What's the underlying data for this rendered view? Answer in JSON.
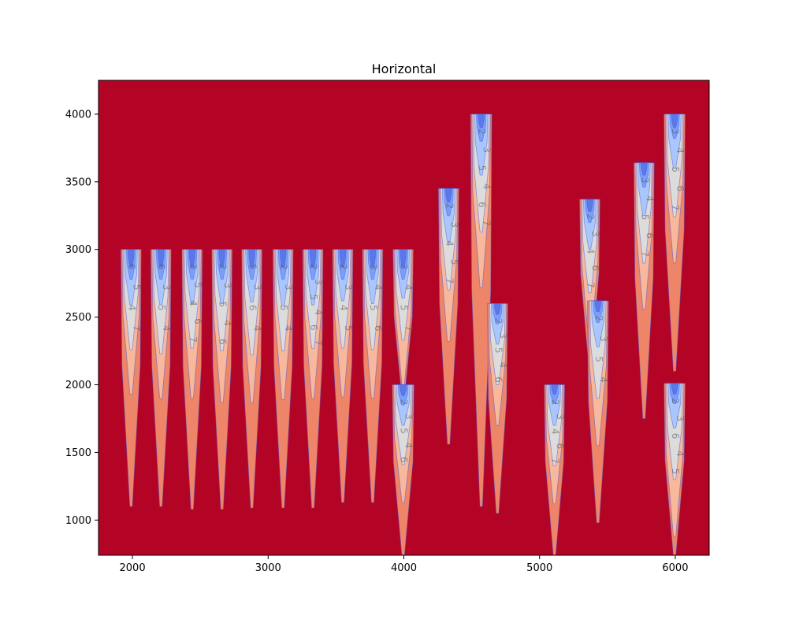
{
  "chart_data": {
    "type": "contourf",
    "title": "Horizontal",
    "xlabel": "",
    "ylabel": "",
    "xlim": [
      1750,
      6250
    ],
    "ylim": [
      740,
      4250
    ],
    "x_ticks": [
      2000,
      3000,
      4000,
      5000,
      6000
    ],
    "x_tick_labels": [
      "2000",
      "3000",
      "4000",
      "5000",
      "6000"
    ],
    "y_ticks": [
      1000,
      1500,
      2000,
      2500,
      3000,
      3500,
      4000
    ],
    "y_tick_labels": [
      "1000",
      "1500",
      "2000",
      "2500",
      "3000",
      "3500",
      "4000"
    ],
    "grid": false,
    "colormap": "coolwarm",
    "background_color": "#b40426",
    "contour_levels": [
      {
        "level": "1",
        "color": "#5a78e6"
      },
      {
        "level": "2",
        "color": "#7b9ff9"
      },
      {
        "level": "3",
        "color": "#aac7fd"
      },
      {
        "level": "4",
        "color": "#dddcdc"
      },
      {
        "level": "5",
        "color": "#f7b89c"
      },
      {
        "level": "6",
        "color": "#ee8468"
      },
      {
        "level": "7",
        "color": "#b40426"
      }
    ],
    "plumes": [
      {
        "x": 1990,
        "top": 3000,
        "halfwidth": 75,
        "bottoms": [
          2870,
          2780,
          2590,
          2260,
          1930,
          1100
        ],
        "labels": [
          "6",
          "5",
          "4",
          "7"
        ]
      },
      {
        "x": 2210,
        "top": 3000,
        "halfwidth": 75,
        "bottoms": [
          2870,
          2780,
          2590,
          2230,
          1900,
          1100
        ],
        "labels": [
          "6",
          "3",
          "5",
          "4"
        ]
      },
      {
        "x": 2440,
        "top": 3000,
        "halfwidth": 75,
        "bottoms": [
          2870,
          2780,
          2600,
          2270,
          1900,
          1080
        ],
        "labels": [
          "3",
          "5",
          "4",
          "6",
          "7"
        ]
      },
      {
        "x": 2660,
        "top": 3000,
        "halfwidth": 75,
        "bottoms": [
          2870,
          2780,
          2600,
          2250,
          1870,
          1080
        ],
        "labels": [
          "2",
          "3",
          "5",
          "4",
          "6"
        ]
      },
      {
        "x": 2880,
        "top": 3000,
        "halfwidth": 75,
        "bottoms": [
          2870,
          2780,
          2610,
          2220,
          1870,
          1090
        ],
        "labels": [
          "5",
          "3",
          "6",
          "4"
        ]
      },
      {
        "x": 3110,
        "top": 3000,
        "halfwidth": 75,
        "bottoms": [
          2870,
          2780,
          2580,
          2250,
          1890,
          1090
        ],
        "labels": [
          "2",
          "3",
          "5",
          "4"
        ]
      },
      {
        "x": 3330,
        "top": 3000,
        "halfwidth": 75,
        "bottoms": [
          2870,
          2780,
          2590,
          2270,
          1900,
          1090
        ],
        "labels": [
          "2",
          "3",
          "5",
          "4",
          "6",
          "7"
        ]
      },
      {
        "x": 3550,
        "top": 3000,
        "halfwidth": 75,
        "bottoms": [
          2870,
          2780,
          2620,
          2270,
          1910,
          1130
        ],
        "labels": [
          "2",
          "3",
          "4",
          "5"
        ]
      },
      {
        "x": 3770,
        "top": 3000,
        "halfwidth": 75,
        "bottoms": [
          2870,
          2780,
          2600,
          2260,
          1900,
          1130
        ],
        "labels": [
          "3",
          "4",
          "5",
          "6"
        ]
      },
      {
        "x": 3995,
        "top": 3000,
        "halfwidth": 75,
        "bottoms": [
          2870,
          2780,
          2640,
          2330,
          2000,
          1900
        ],
        "labels": [
          "3",
          "4",
          "5",
          "7"
        ]
      },
      {
        "x": 3995,
        "top": 2000,
        "halfwidth": 80,
        "bottoms": [
          1920,
          1850,
          1700,
          1410,
          1130,
          740
        ],
        "labels": [
          "2",
          "3",
          "5",
          "4",
          "6"
        ]
      },
      {
        "x": 4330,
        "top": 3450,
        "halfwidth": 75,
        "bottoms": [
          3350,
          3250,
          3050,
          2700,
          2320,
          1560
        ],
        "labels": [
          "2",
          "3",
          "4",
          "5",
          "7"
        ]
      },
      {
        "x": 4570,
        "top": 4000,
        "halfwidth": 78,
        "bottoms": [
          3900,
          3800,
          3550,
          3130,
          2720,
          1100
        ],
        "labels": [
          "2",
          "3",
          "5",
          "4",
          "6",
          "7"
        ]
      },
      {
        "x": 4690,
        "top": 2600,
        "halfwidth": 75,
        "bottoms": [
          2520,
          2450,
          2300,
          2000,
          1700,
          1050
        ],
        "labels": [
          "2",
          "3",
          "5",
          "4",
          "6"
        ]
      },
      {
        "x": 5110,
        "top": 2000,
        "halfwidth": 75,
        "bottoms": [
          1930,
          1860,
          1700,
          1400,
          1120,
          740
        ],
        "labels": [
          "2",
          "3",
          "4",
          "6",
          "7"
        ]
      },
      {
        "x": 5370,
        "top": 3370,
        "halfwidth": 75,
        "bottoms": [
          3280,
          3200,
          3010,
          2680,
          2330,
          2150
        ],
        "labels": [
          "2",
          "3",
          "4",
          "6",
          "7"
        ]
      },
      {
        "x": 5430,
        "top": 2620,
        "halfwidth": 78,
        "bottoms": [
          2540,
          2460,
          2280,
          1900,
          1550,
          980
        ],
        "labels": [
          "2",
          "3",
          "5",
          "4"
        ]
      },
      {
        "x": 5770,
        "top": 3640,
        "halfwidth": 75,
        "bottoms": [
          3550,
          3460,
          3250,
          2900,
          2560,
          1750
        ],
        "labels": [
          "3",
          "4",
          "5",
          "6",
          "7"
        ]
      },
      {
        "x": 5995,
        "top": 4000,
        "halfwidth": 78,
        "bottoms": [
          3900,
          3820,
          3600,
          3240,
          2900,
          2100
        ],
        "labels": [
          "3",
          "4",
          "5",
          "6",
          "7"
        ]
      },
      {
        "x": 5995,
        "top": 2010,
        "halfwidth": 78,
        "bottoms": [
          1930,
          1860,
          1680,
          1300,
          880,
          740
        ],
        "labels": [
          "2",
          "3",
          "6",
          "4",
          "5"
        ]
      }
    ]
  }
}
